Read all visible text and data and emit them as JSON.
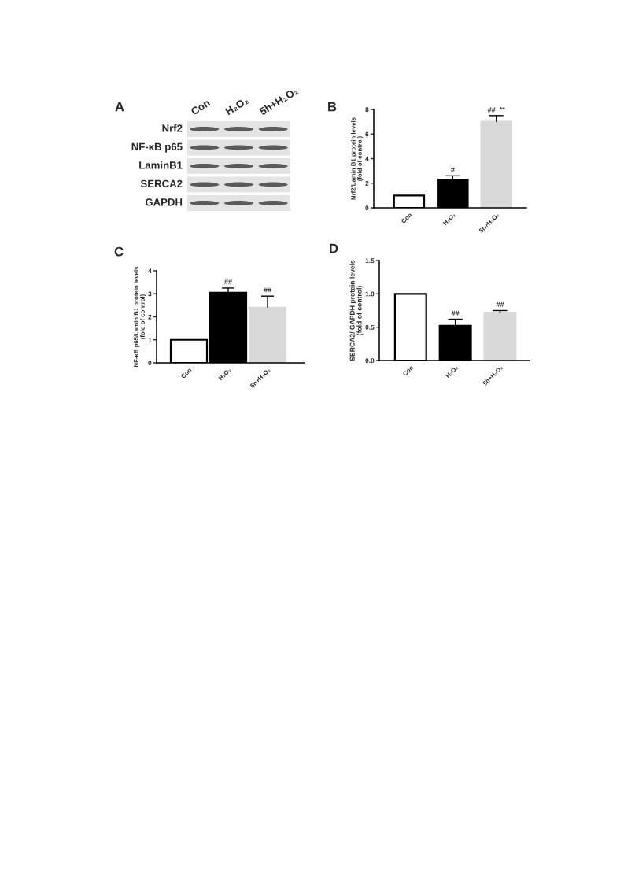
{
  "chart_data": [
    {
      "type": "other",
      "title": "A",
      "categories": [
        "Con",
        "H₂O₂",
        "5h+H₂O₂"
      ],
      "y_categories": [
        "Nrf2",
        "NF-κB p65",
        "LaminB1",
        "SERCA2",
        "GAPDH"
      ]
    },
    {
      "type": "bar",
      "title": "B",
      "categories": [
        "Con",
        "H₂O₂",
        "5h+H₂O₂"
      ],
      "values": [
        1.0,
        2.3,
        7.0
      ],
      "colors": [
        "#ffffff",
        "#000000",
        "#d9d9d9"
      ],
      "errors": [
        null,
        [
          2.3,
          2.6
        ],
        [
          7.0,
          7.5
        ]
      ],
      "ylabel": "Nrf2/Lamin B1 protein levels\n(fold of control)",
      "ylim": [
        0,
        8
      ],
      "yticks": [
        0,
        2,
        4,
        6,
        8
      ],
      "annotations": [
        {
          "text": "#",
          "x": "H₂O₂",
          "y": 2.6
        },
        {
          "text": "##  **",
          "x": "5h+H₂O₂",
          "y": 7.5
        }
      ]
    },
    {
      "type": "bar",
      "title": "C",
      "categories": [
        "Con",
        "H₂O₂",
        "5h+H₂O₂"
      ],
      "values": [
        1.0,
        3.05,
        2.4
      ],
      "colors": [
        "#ffffff",
        "#000000",
        "#d9d9d9"
      ],
      "errors": [
        null,
        [
          3.05,
          3.25
        ],
        [
          2.4,
          2.9
        ]
      ],
      "ylabel": "NF-κB p65/Lamin B1 protein levels\n(fold of control)",
      "ylim": [
        0,
        4
      ],
      "yticks": [
        0,
        1,
        2,
        3,
        4
      ],
      "annotations": [
        {
          "text": "##",
          "x": "H₂O₂",
          "y": 3.25
        },
        {
          "text": "##",
          "x": "5h+H₂O₂",
          "y": 2.9
        }
      ]
    },
    {
      "type": "bar",
      "title": "D",
      "categories": [
        "Con",
        "H₂O₂",
        "5h+H₂O₂"
      ],
      "values": [
        1.0,
        0.52,
        0.72
      ],
      "colors": [
        "#ffffff",
        "#000000",
        "#d9d9d9"
      ],
      "errors": [
        null,
        [
          0.52,
          0.62
        ],
        [
          0.72,
          0.75
        ]
      ],
      "ylabel": "SERCA2/ GAPDH protein levels\n(fold of control)",
      "ylim": [
        0,
        1.5
      ],
      "yticks": [
        {
          "value": 0,
          "label": "0.0"
        },
        {
          "value": 0.5,
          "label": "0.5"
        },
        {
          "value": 1.0,
          "label": "1.0"
        },
        {
          "value": 1.5,
          "label": "1.5"
        }
      ],
      "annotations": [
        {
          "text": "##",
          "x": "H₂O₂",
          "y": 0.62
        },
        {
          "text": "##",
          "x": "5h+H₂O₂",
          "y": 0.75
        }
      ]
    }
  ]
}
